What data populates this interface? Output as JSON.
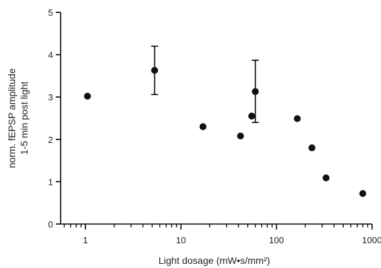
{
  "chart_data": {
    "type": "scatter",
    "title": "",
    "xlabel": "Light dosage (mW•s/mm²)",
    "ylabel_lines": [
      "norm. fEPSP amplitude",
      "1-5 min post light"
    ],
    "x_scale": "log",
    "xlim": [
      0.55,
      1000
    ],
    "ylim": [
      0,
      5
    ],
    "x_ticks": [
      {
        "value": 1,
        "label": "1"
      },
      {
        "value": 10,
        "label": "10"
      },
      {
        "value": 100,
        "label": "100"
      },
      {
        "value": 1000,
        "label": "1000"
      }
    ],
    "y_ticks": [
      {
        "value": 0,
        "label": "0"
      },
      {
        "value": 1,
        "label": "1"
      },
      {
        "value": 2,
        "label": "2"
      },
      {
        "value": 3,
        "label": "3"
      },
      {
        "value": 4,
        "label": "4"
      },
      {
        "value": 5,
        "label": "5"
      }
    ],
    "grid": false,
    "legend": "none",
    "marker_color": "#111111",
    "points": [
      {
        "x": 1.05,
        "y": 3.02
      },
      {
        "x": 5.3,
        "y": 3.63,
        "err_low": 3.06,
        "err_high": 4.2
      },
      {
        "x": 17,
        "y": 2.3
      },
      {
        "x": 42,
        "y": 2.08
      },
      {
        "x": 55,
        "y": 2.55
      },
      {
        "x": 60,
        "y": 3.13,
        "err_low": 2.4,
        "err_high": 3.87
      },
      {
        "x": 165,
        "y": 2.49
      },
      {
        "x": 235,
        "y": 1.8
      },
      {
        "x": 330,
        "y": 1.09
      },
      {
        "x": 800,
        "y": 0.72
      }
    ]
  }
}
